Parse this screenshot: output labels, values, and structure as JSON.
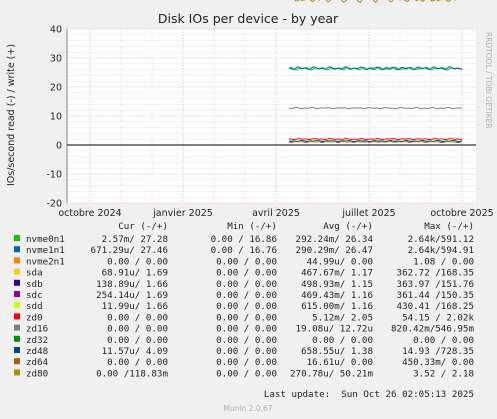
{
  "chart_data": {
    "type": "line",
    "title": "Disk IOs per device - by year",
    "ylabel": "IOs/second read (-) / write (+)",
    "side_label": "RRDTOOL / TOBI OETIKER",
    "ylim": [
      -20,
      40
    ],
    "yticks": [
      -20,
      -10,
      0,
      10,
      20,
      30,
      40
    ],
    "x_tick_labels": [
      "octobre 2024",
      "janvier 2025",
      "avril 2025",
      "juillet 2025",
      "octobre 2025"
    ],
    "x_tick_positions": [
      0.0,
      0.25,
      0.5,
      0.75,
      1.0
    ],
    "grid": true,
    "legend_header": {
      "cur": "Cur (-/+)",
      "min": "Min (-/+)",
      "avg": "Avg (-/+)",
      "max": "Max (-/+)"
    },
    "legend": [
      {
        "name": "nvme0n1",
        "color": "#00cc00",
        "cur": "2.57m/ 27.28",
        "min": "0.00 / 16.86",
        "avg": "292.24m/ 26.34",
        "max": "2.64k/591.12"
      },
      {
        "name": "nvme1n1",
        "color": "#0066b3",
        "cur": "671.29u/ 27.46",
        "min": "0.00 / 16.76",
        "avg": "290.29m/ 26.47",
        "max": "2.64k/594.91"
      },
      {
        "name": "nvme2n1",
        "color": "#ff8000",
        "cur": "0.00 / 0.00",
        "min": "0.00 / 0.00",
        "avg": "44.99u/ 0.00",
        "max": "1.08 / 0.00"
      },
      {
        "name": "sda",
        "color": "#ffcc00",
        "cur": "68.91u/ 1.69",
        "min": "0.00 / 0.00",
        "avg": "467.67m/ 1.17",
        "max": "362.72 /168.35"
      },
      {
        "name": "sdb",
        "color": "#330099",
        "cur": "138.89u/ 1.66",
        "min": "0.00 / 0.00",
        "avg": "498.93m/ 1.15",
        "max": "363.97 /151.76"
      },
      {
        "name": "sdc",
        "color": "#990099",
        "cur": "254.14u/ 1.69",
        "min": "0.00 / 0.00",
        "avg": "469.43m/ 1.16",
        "max": "361.44 /150.35"
      },
      {
        "name": "sdd",
        "color": "#ccff00",
        "cur": "11.99u/ 1.66",
        "min": "0.00 / 0.00",
        "avg": "615.00m/ 1.16",
        "max": "430.41 /168.25"
      },
      {
        "name": "zd0",
        "color": "#ff0000",
        "cur": "0.00 / 0.00",
        "min": "0.00 / 0.00",
        "avg": "5.12m/ 2.05",
        "max": "54.15 / 2.02k"
      },
      {
        "name": "zd16",
        "color": "#808080",
        "cur": "0.00 / 0.00",
        "min": "0.00 / 0.00",
        "avg": "19.08u/ 12.72u",
        "max": "820.42m/546.95m"
      },
      {
        "name": "zd32",
        "color": "#008f00",
        "cur": "0.00 / 0.00",
        "min": "0.00 / 0.00",
        "avg": "0.00 / 0.00",
        "max": "0.00 / 0.00"
      },
      {
        "name": "zd48",
        "color": "#00487d",
        "cur": "11.57u/ 4.09",
        "min": "0.00 / 0.00",
        "avg": "658.55u/ 1.38",
        "max": "14.93 /728.35"
      },
      {
        "name": "zd64",
        "color": "#b35a00",
        "cur": "0.00 / 0.00",
        "min": "0.00 / 0.00",
        "avg": "16.61u/ 0.00",
        "max": "450.33m/ 0.00"
      },
      {
        "name": "zd80",
        "color": "#b38f00",
        "cur": "0.00 /118.83m",
        "min": "0.00 / 0.00",
        "avg": "270.78u/ 50.21m",
        "max": "3.52 / 2.18"
      }
    ],
    "last_update": "Last update:  Sun Oct 26 02:05:13 2025",
    "footer": "Munin 2.0.67"
  }
}
